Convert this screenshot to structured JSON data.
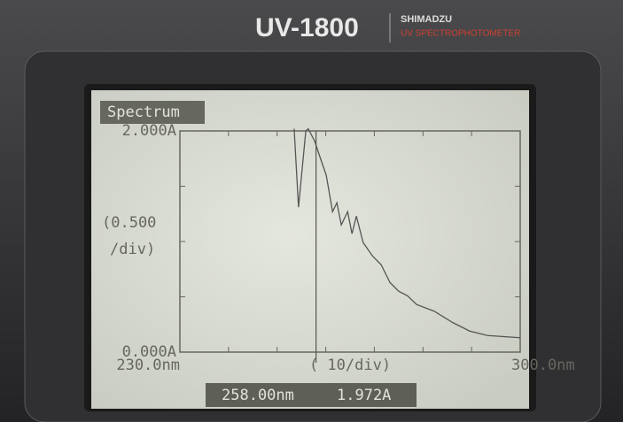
{
  "header": {
    "model": "UV-1800",
    "brand": "SHIMADZU",
    "product": "UV SPECTROPHOTOMETER"
  },
  "chart_data": {
    "type": "line",
    "title": "Spectrum",
    "x": [
      253.5,
      254.4,
      255.9,
      256.4,
      257.7,
      259.0,
      260.1,
      261.4,
      262.3,
      263.2,
      264.5,
      265.4,
      266.3,
      267.7,
      269.6,
      271.4,
      273.2,
      275.0,
      276.8,
      278.7,
      282.3,
      286.0,
      289.6,
      293.3,
      300.0
    ],
    "series": [
      {
        "color": "#555555",
        "values": [
          2.02,
          1.31,
          2.0,
          2.02,
          1.91,
          1.74,
          1.6,
          1.27,
          1.35,
          1.15,
          1.27,
          1.07,
          1.23,
          0.99,
          0.87,
          0.79,
          0.63,
          0.55,
          0.51,
          0.43,
          0.37,
          0.27,
          0.19,
          0.15,
          0.13
        ]
      }
    ],
    "xlim": [
      230,
      300
    ],
    "ylim": [
      0,
      2
    ],
    "xticks": [
      {
        "value": 230,
        "label": "230.0nm"
      },
      {
        "value": 300,
        "label": "300.0nm"
      }
    ],
    "x_minor_ticks": [
      240,
      250,
      260,
      270,
      280,
      290
    ],
    "yticks": [
      {
        "value": 0,
        "label": "0.000A"
      },
      {
        "value": 2,
        "label": "2.000A"
      }
    ],
    "y_minor_ticks": [
      0.5,
      1,
      1.5
    ],
    "x_scale_label": "( 10/div)",
    "y_scale_label": [
      "(0.500",
      "/div)"
    ],
    "cursor": {
      "x": {
        "value": 258,
        "label": "258.00nm"
      },
      "y": {
        "value": 1.972,
        "label": "1.972A"
      }
    }
  }
}
